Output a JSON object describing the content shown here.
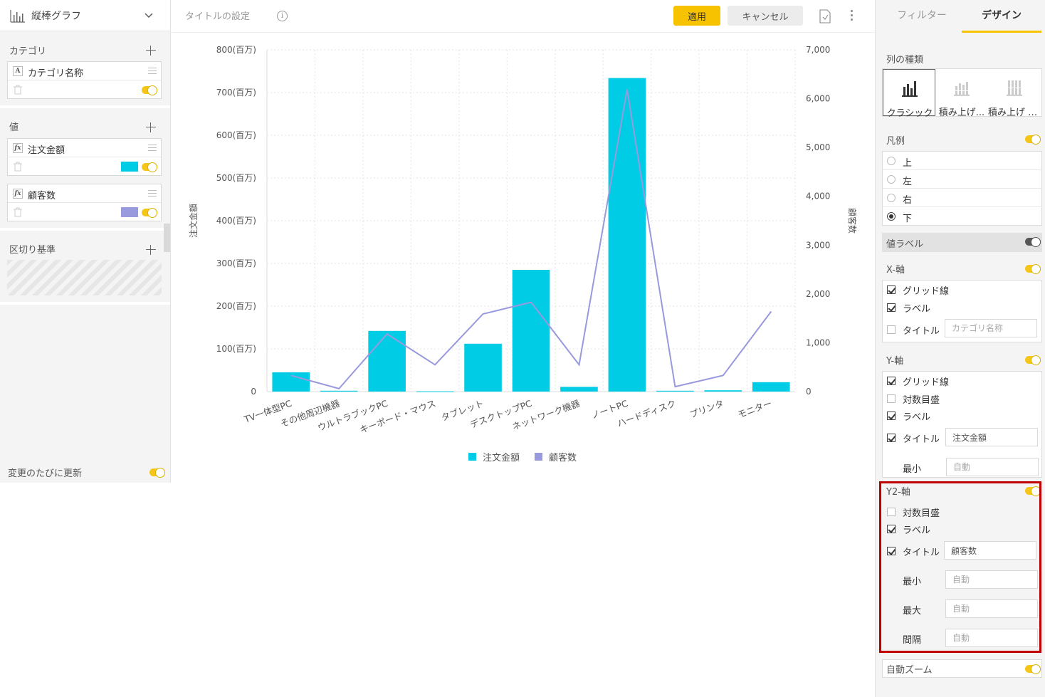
{
  "left_panel": {
    "chart_type_label": "縦棒グラフ",
    "category_section": "カテゴリ",
    "category_field": "カテゴリ名称",
    "category_badge": "A",
    "values_section": "値",
    "value_fields": [
      {
        "name": "注文金額",
        "badge": "fx",
        "color": "#00CCE5"
      },
      {
        "name": "顧客数",
        "badge": "fx",
        "color": "#9999DD"
      }
    ],
    "breakdown_section": "区切り基準",
    "update_on_change": "変更のたびに更新"
  },
  "toolbar": {
    "title_setting": "タイトルの設定",
    "info_glyph": "i",
    "apply_label": "適用",
    "cancel_label": "キャンセル"
  },
  "right_panel": {
    "tabs": [
      "フィルター",
      "デザイン"
    ],
    "series_type_label": "列の種類",
    "series_types": [
      "クラシック",
      "積み上げ...",
      "積み上げ 1..."
    ],
    "legend_label": "凡例",
    "legend_options": [
      "上",
      "左",
      "右",
      "下"
    ],
    "legend_selected": "下",
    "value_label": "値ラベル",
    "x_axis": {
      "label": "X-軸",
      "grid": "グリッド線",
      "labels": "ラベル",
      "title": "タイトル",
      "title_placeholder": "カテゴリ名称"
    },
    "y_axis": {
      "label": "Y-軸",
      "grid": "グリッド線",
      "log_scale": "対数目盛",
      "labels": "ラベル",
      "title": "タイトル",
      "title_value": "注文金額",
      "min": "最小",
      "min_placeholder": "自動"
    },
    "y2_axis": {
      "label": "Y2-軸",
      "log_scale": "対数目盛",
      "labels": "ラベル",
      "title": "タイトル",
      "title_value": "顧客数",
      "min": "最小",
      "max": "最大",
      "interval": "間隔",
      "placeholder": "自動"
    },
    "auto_zoom": "自動ズーム"
  },
  "chart_data": {
    "type": "bar",
    "categories": [
      "TV一体型PC",
      "その他周辺機器",
      "ウルトラブックPC",
      "キーボード・マウス",
      "タブレット",
      "デスクトップPC",
      "ネットワーク機器",
      "ノートPC",
      "ハードディスク",
      "プリンタ",
      "モニター"
    ],
    "series": [
      {
        "name": "注文金額",
        "type": "bar",
        "axis": "y",
        "color": "#00CCE5",
        "values": [
          45,
          2,
          142,
          0.5,
          112,
          285,
          11,
          734,
          2,
          3,
          22
        ]
      },
      {
        "name": "顧客数",
        "type": "line",
        "axis": "y2",
        "color": "#9999DD",
        "values": [
          330,
          60,
          1180,
          550,
          1590,
          1830,
          550,
          6190,
          100,
          330,
          1640
        ]
      }
    ],
    "ylabel": "注文金額",
    "y2label": "顧客数",
    "ylim": [
      0,
      800
    ],
    "y2lim": [
      0,
      7000
    ],
    "y_ticks": [
      "0",
      "100(百万)",
      "200(百万)",
      "300(百万)",
      "400(百万)",
      "500(百万)",
      "600(百万)",
      "700(百万)",
      "800(百万)"
    ],
    "y2_ticks": [
      "0",
      "1,000",
      "2,000",
      "3,000",
      "4,000",
      "5,000",
      "6,000",
      "7,000"
    ],
    "grid": true,
    "legend": "bottom"
  }
}
